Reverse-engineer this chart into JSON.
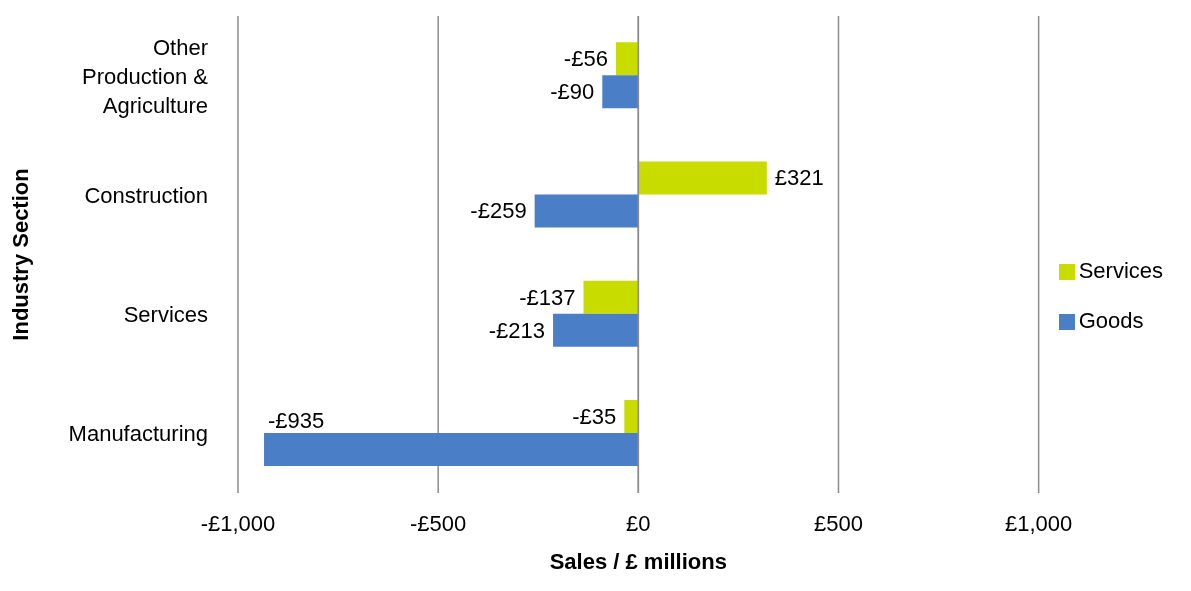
{
  "chart_data": {
    "type": "bar",
    "orientation": "horizontal",
    "categories": [
      "Other Production & Agriculture",
      "Construction",
      "Services",
      "Manufacturing"
    ],
    "series": [
      {
        "name": "Services",
        "color": "#c8dc00",
        "values": [
          -56,
          321,
          -137,
          -35
        ],
        "value_labels": [
          "-£56",
          "£321",
          "-£137",
          "-£35"
        ]
      },
      {
        "name": "Goods",
        "color": "#4a7fc8",
        "values": [
          -90,
          -259,
          -213,
          -935
        ],
        "value_labels": [
          "-£90",
          "-£259",
          "-£213",
          "-£935"
        ]
      }
    ],
    "xlabel": "Sales / £ millions",
    "ylabel": "Industry Section",
    "xlim": [
      -1000,
      1000
    ],
    "xticks": [
      {
        "value": -1000,
        "label": "-£1,000"
      },
      {
        "value": -500,
        "label": "-£500"
      },
      {
        "value": 0,
        "label": "£0"
      },
      {
        "value": 500,
        "label": "£500"
      },
      {
        "value": 1000,
        "label": "£1,000"
      }
    ],
    "grid": "x",
    "legend": "right"
  }
}
